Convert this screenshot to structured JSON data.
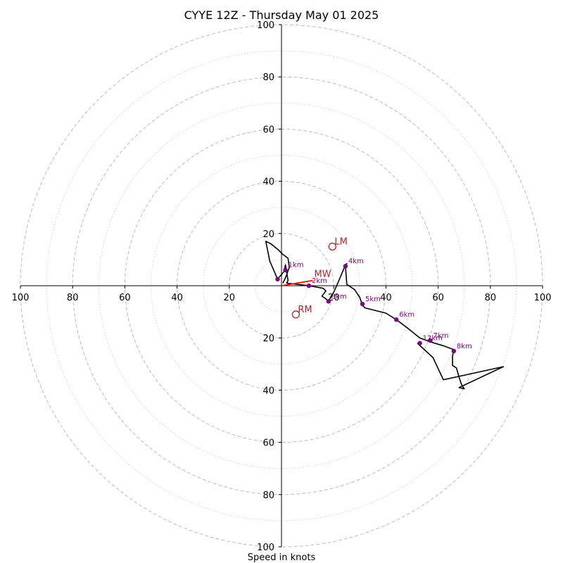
{
  "chart_data": {
    "type": "hodograph",
    "title": "CYYE 12Z - Thursday May 01 2025",
    "xlabel": "Speed in knots",
    "xlim": [
      -100,
      100
    ],
    "ylim": [
      -100,
      100
    ],
    "x_ticks": [
      {
        "value": -100,
        "label": "100"
      },
      {
        "value": -80,
        "label": "80"
      },
      {
        "value": -60,
        "label": "60"
      },
      {
        "value": -40,
        "label": "40"
      },
      {
        "value": -20,
        "label": "20"
      },
      {
        "value": 20,
        "label": "20"
      },
      {
        "value": 40,
        "label": "40"
      },
      {
        "value": 60,
        "label": "60"
      },
      {
        "value": 80,
        "label": "80"
      },
      {
        "value": 100,
        "label": "100"
      }
    ],
    "y_ticks": [
      {
        "value": 100,
        "label": "100"
      },
      {
        "value": 80,
        "label": "80"
      },
      {
        "value": 60,
        "label": "60"
      },
      {
        "value": 40,
        "label": "40"
      },
      {
        "value": 20,
        "label": "20"
      },
      {
        "value": -20,
        "label": "20"
      },
      {
        "value": -40,
        "label": "40"
      },
      {
        "value": -60,
        "label": "60"
      },
      {
        "value": -80,
        "label": "80"
      },
      {
        "value": -100,
        "label": "100"
      }
    ],
    "rings_major": [
      20,
      40,
      60,
      80,
      100
    ],
    "rings_minor": [
      10,
      30,
      50,
      70,
      90
    ],
    "colors": {
      "trace": "#000000",
      "height_marker": "#800080",
      "motion": "#b22222",
      "mean_wind_vector": "#ff0000",
      "grid": "#bbbbbb"
    },
    "hodograph_trace": [
      [
        0.5,
        1.0
      ],
      [
        1.5,
        3.0
      ],
      [
        3.0,
        7.0
      ],
      [
        2.5,
        10.5
      ],
      [
        0.5,
        12.0
      ],
      [
        -1.5,
        14.0
      ],
      [
        -4.0,
        16.0
      ],
      [
        -6.0,
        17.0
      ],
      [
        -4.5,
        9.5
      ],
      [
        -1.5,
        2.5
      ],
      [
        1.0,
        5.5
      ],
      [
        1.5,
        8.0
      ],
      [
        2.5,
        2.0
      ],
      [
        2.0,
        1.0
      ],
      [
        6.0,
        0.5
      ],
      [
        10.5,
        0.0
      ],
      [
        16.0,
        -1.0
      ],
      [
        17.0,
        -2.0
      ],
      [
        15.5,
        -4.0
      ],
      [
        17.0,
        -5.0
      ],
      [
        18.0,
        -6.0
      ],
      [
        19.0,
        -4.0
      ],
      [
        20.0,
        -2.5
      ],
      [
        22.0,
        2.0
      ],
      [
        24.5,
        8.0
      ],
      [
        25.0,
        8.5
      ],
      [
        24.5,
        7.5
      ],
      [
        25.0,
        0.5
      ],
      [
        28.0,
        -1.5
      ],
      [
        30.0,
        -4.5
      ],
      [
        31.0,
        -7.5
      ],
      [
        32.0,
        -8.5
      ],
      [
        40.0,
        -10.5
      ],
      [
        44.0,
        -13.0
      ],
      [
        48.0,
        -16.0
      ],
      [
        53.0,
        -20.0
      ],
      [
        57.0,
        -21.5
      ],
      [
        62.0,
        -23.0
      ],
      [
        66.0,
        -24.5
      ],
      [
        65.5,
        -27.0
      ],
      [
        65.5,
        -30.5
      ],
      [
        67.0,
        -31.5
      ],
      [
        68.0,
        -35.0
      ],
      [
        69.0,
        -38.0
      ],
      [
        70.0,
        -39.5
      ],
      [
        68.0,
        -39.0
      ],
      [
        85.0,
        -31.0
      ],
      [
        62.0,
        -36.0
      ],
      [
        58.0,
        -27.5
      ],
      [
        52.0,
        -22.0
      ]
    ],
    "height_markers": [
      {
        "label": "",
        "u": -1.5,
        "v": 2.5
      },
      {
        "label": "1km",
        "u": 1.5,
        "v": 6.0
      },
      {
        "label": "2km",
        "u": 10.5,
        "v": 0.0
      },
      {
        "label": "3km",
        "u": 18.0,
        "v": -6.0
      },
      {
        "label": "4km",
        "u": 24.5,
        "v": 7.5
      },
      {
        "label": "5km",
        "u": 31.0,
        "v": -7.0
      },
      {
        "label": "6km",
        "u": 44.0,
        "v": -13.0
      },
      {
        "label": "7km",
        "u": 57.0,
        "v": -21.0
      },
      {
        "label": "8km",
        "u": 66.0,
        "v": -25.0
      },
      {
        "label": "12km",
        "u": 53.0,
        "v": -22.0
      }
    ],
    "storm_motion": [
      {
        "label": "LM",
        "u": 19.5,
        "v": 15.0
      },
      {
        "label": "RM",
        "u": 5.5,
        "v": -11.0
      }
    ],
    "mean_wind": {
      "label": "MW",
      "u": 12.0,
      "v": 2.0
    }
  }
}
